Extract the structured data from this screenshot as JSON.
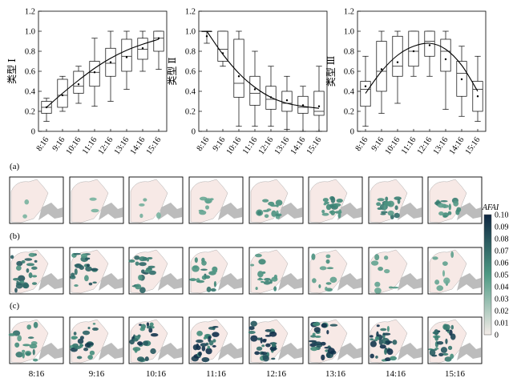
{
  "chart_data": [
    {
      "type": "box",
      "ylabel": "类型 Ⅰ",
      "ylim": [
        0,
        1.2
      ],
      "yticks": [
        "0",
        "0.2",
        "0.4",
        "0.6",
        "0.8",
        "1.0",
        "1.2"
      ],
      "categories": [
        "8:16",
        "9:16",
        "10:16",
        "11:16",
        "12:16",
        "13:16",
        "14:16",
        "15:16"
      ],
      "boxes": [
        {
          "min": 0.1,
          "q1": 0.18,
          "median": 0.24,
          "q3": 0.3,
          "max": 0.33,
          "mean": 0.24
        },
        {
          "min": 0.2,
          "q1": 0.24,
          "median": 0.36,
          "q3": 0.52,
          "max": 0.55,
          "mean": 0.36
        },
        {
          "min": 0.28,
          "q1": 0.38,
          "median": 0.45,
          "q3": 0.6,
          "max": 0.65,
          "mean": 0.47
        },
        {
          "min": 0.25,
          "q1": 0.45,
          "median": 0.59,
          "q3": 0.7,
          "max": 0.93,
          "mean": 0.59
        },
        {
          "min": 0.3,
          "q1": 0.55,
          "median": 0.68,
          "q3": 0.83,
          "max": 1.0,
          "mean": 0.69
        },
        {
          "min": 0.42,
          "q1": 0.6,
          "median": 0.75,
          "q3": 0.92,
          "max": 1.0,
          "mean": 0.74
        },
        {
          "min": 0.6,
          "q1": 0.72,
          "median": 0.82,
          "q3": 0.93,
          "max": 1.0,
          "mean": 0.83
        },
        {
          "min": 0.62,
          "q1": 0.8,
          "median": 0.93,
          "q3": 1.0,
          "max": 1.0,
          "mean": 0.93
        }
      ],
      "fit": [
        0.24,
        0.38,
        0.51,
        0.63,
        0.73,
        0.81,
        0.87,
        0.92
      ]
    },
    {
      "type": "box",
      "ylabel": "类型 Ⅱ",
      "ylim": [
        0,
        1.2
      ],
      "yticks": [
        "0",
        "0.2",
        "0.4",
        "0.6",
        "0.8",
        "1.0",
        "1.2"
      ],
      "categories": [
        "8:16",
        "9:16",
        "10:16",
        "11:16",
        "12:16",
        "13:16",
        "14:16",
        "15:16"
      ],
      "boxes": [
        {
          "min": 0.88,
          "q1": 1.0,
          "median": 1.0,
          "q3": 1.0,
          "max": 1.0,
          "mean": 0.95
        },
        {
          "min": 0.65,
          "q1": 0.7,
          "median": 0.82,
          "q3": 1.0,
          "max": 1.0,
          "mean": 0.78
        },
        {
          "min": 0.05,
          "q1": 0.34,
          "median": 0.48,
          "q3": 0.92,
          "max": 1.0,
          "mean": 0.55
        },
        {
          "min": 0.05,
          "q1": 0.26,
          "median": 0.38,
          "q3": 0.55,
          "max": 0.8,
          "mean": 0.42
        },
        {
          "min": 0.05,
          "q1": 0.22,
          "median": 0.32,
          "q3": 0.45,
          "max": 0.65,
          "mean": 0.34
        },
        {
          "min": 0.02,
          "q1": 0.2,
          "median": 0.28,
          "q3": 0.4,
          "max": 0.55,
          "mean": 0.31
        },
        {
          "min": 0.0,
          "q1": 0.18,
          "median": 0.24,
          "q3": 0.35,
          "max": 0.45,
          "mean": 0.26
        },
        {
          "min": 0.0,
          "q1": 0.16,
          "median": 0.2,
          "q3": 0.4,
          "max": 0.65,
          "mean": 0.25
        }
      ],
      "fit": [
        1.0,
        0.77,
        0.58,
        0.44,
        0.34,
        0.28,
        0.25,
        0.23
      ]
    },
    {
      "type": "box",
      "ylabel": "类型 Ⅲ",
      "ylim": [
        0,
        1.2
      ],
      "yticks": [
        "0",
        "0.2",
        "0.4",
        "0.6",
        "0.8",
        "1.0",
        "1.2"
      ],
      "categories": [
        "8:16",
        "9:16",
        "10:16",
        "11:16",
        "12:16",
        "13:16",
        "14:16",
        "15:16"
      ],
      "boxes": [
        {
          "min": 0.05,
          "q1": 0.25,
          "median": 0.42,
          "q3": 0.5,
          "max": 0.75,
          "mean": 0.45
        },
        {
          "min": 0.18,
          "q1": 0.4,
          "median": 0.6,
          "q3": 0.9,
          "max": 1.0,
          "mean": 0.62
        },
        {
          "min": 0.28,
          "q1": 0.55,
          "median": 0.65,
          "q3": 0.95,
          "max": 1.0,
          "mean": 0.69
        },
        {
          "min": 0.55,
          "q1": 0.65,
          "median": 0.8,
          "q3": 1.0,
          "max": 1.0,
          "mean": 0.8
        },
        {
          "min": 0.55,
          "q1": 0.75,
          "median": 0.9,
          "q3": 1.0,
          "max": 1.0,
          "mean": 0.86
        },
        {
          "min": 0.22,
          "q1": 0.6,
          "median": 0.8,
          "q3": 0.92,
          "max": 1.0,
          "mean": 0.72
        },
        {
          "min": 0.15,
          "q1": 0.35,
          "median": 0.58,
          "q3": 0.7,
          "max": 0.85,
          "mean": 0.52
        },
        {
          "min": 0.1,
          "q1": 0.2,
          "median": 0.42,
          "q3": 0.5,
          "max": 0.75,
          "mean": 0.35
        }
      ],
      "fit": [
        0.38,
        0.6,
        0.76,
        0.85,
        0.88,
        0.82,
        0.66,
        0.4
      ]
    }
  ],
  "map_panels": {
    "row_labels": [
      "(a)",
      "(b)",
      "(c)"
    ],
    "time_labels": [
      "8:16",
      "9:16",
      "10:16",
      "11:16",
      "12:16",
      "13:16",
      "14:16",
      "15:16"
    ],
    "rows": [
      {
        "label": "(a)",
        "bloom": [
          0.05,
          0.08,
          0.12,
          0.22,
          0.45,
          0.55,
          0.6,
          0.5
        ]
      },
      {
        "label": "(b)",
        "bloom": [
          0.75,
          0.72,
          0.7,
          0.6,
          0.5,
          0.38,
          0.3,
          0.25
        ]
      },
      {
        "label": "(c)",
        "bloom": [
          0.55,
          0.78,
          0.85,
          0.9,
          0.95,
          0.92,
          0.9,
          0.85
        ]
      }
    ],
    "colorbar": {
      "title": "AFAI",
      "ticks": [
        "0.10",
        "0.09",
        "0.08",
        "0.07",
        "0.06",
        "0.05",
        "0.04",
        "0.03",
        "0.02",
        "0.01",
        "0"
      ],
      "colors": {
        "low": "#f4ece8",
        "mid": "#4e9a84",
        "high": "#0f2742"
      }
    }
  },
  "colors": {
    "lake_background": "#f7e9e6",
    "land_gray": "#bcbcbc",
    "bloom_light": "#7fb8a4",
    "bloom_dark": "#10304a"
  }
}
